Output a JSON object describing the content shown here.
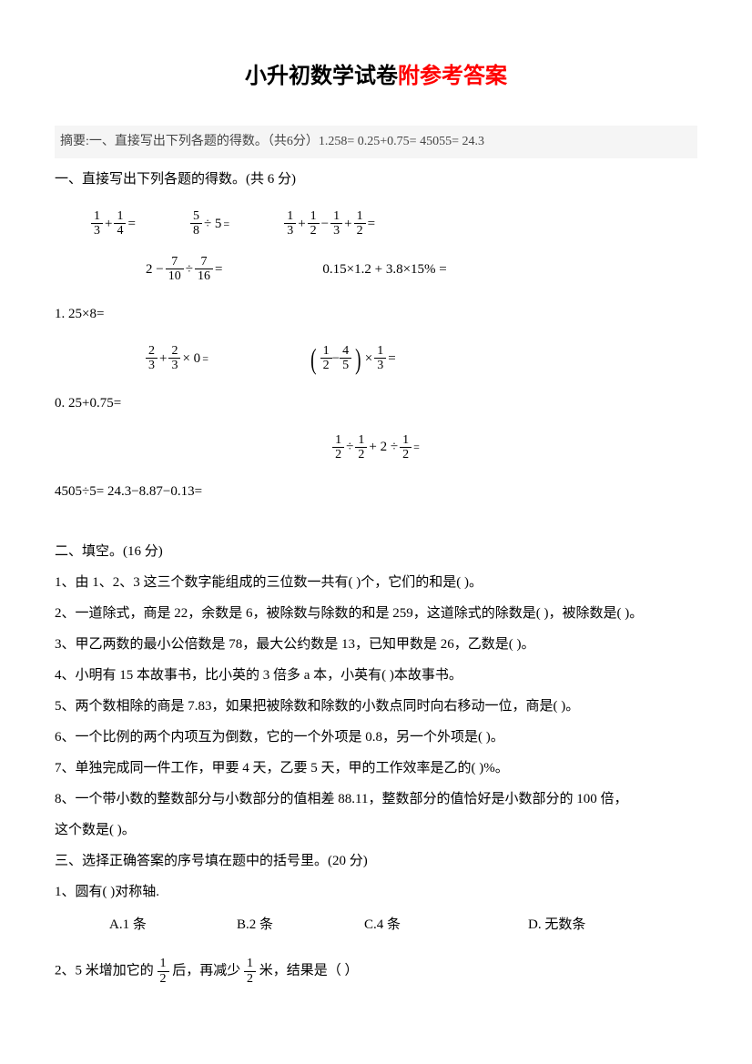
{
  "title_black": "小升初数学试卷",
  "title_red": "附参考答案",
  "abstract": "摘要:一、直接写出下列各题的得数。（共6分）1.258= 0.25+0.75= 45055= 24.3",
  "s1": {
    "heading": "一、直接写出下列各题的得数。(共 6 分)",
    "eq_row1": {
      "a": {
        "n1": "1",
        "d1": "3",
        "op": "+",
        "n2": "1",
        "d2": "4",
        "tail": " ="
      },
      "b": {
        "n": "5",
        "d": "8",
        "tail": " ÷ 5",
        "sub": "="
      },
      "c": {
        "n1": "1",
        "d1": "3",
        "n2": "1",
        "d2": "2",
        "n3": "1",
        "d3": "3",
        "n4": "1",
        "d4": "2",
        "ops": [
          "+",
          "−",
          "+"
        ],
        "tail": " ="
      }
    },
    "eq_row2": {
      "a": {
        "pre": "2 − ",
        "n1": "7",
        "d1": "10",
        "op": " ÷ ",
        "n2": "7",
        "d2": "16",
        "tail": " ="
      },
      "b": "0.15×1.2 + 3.8×15% ="
    },
    "line_a": "1. 25×8=",
    "eq_row3": {
      "a": {
        "n1": "2",
        "d1": "3",
        "op": " + ",
        "n2": "2",
        "d2": "3",
        "tail": " × 0",
        "sub": "="
      },
      "b": {
        "n1": "1",
        "d1": "2",
        "op": " − ",
        "n2": "4",
        "d2": "5",
        "post": " × ",
        "n3": "1",
        "d3": "3",
        "tail": " ="
      }
    },
    "line_b": "0. 25+0.75=",
    "eq_row4": {
      "a": {
        "n1": "1",
        "d1": "2",
        "op1": " ÷ ",
        "n2": "1",
        "d2": "2",
        "mid": " + 2 ÷ ",
        "n3": "1",
        "d3": "2",
        "sub": "="
      }
    },
    "line_c": "4505÷5=  24.3−8.87−0.13="
  },
  "s2": {
    "heading": "二、填空。(16 分)",
    "q1": "1、由 1、2、3 这三个数字能组成的三位数一共有( )个，它们的和是( )。",
    "q2": "2、一道除式，商是 22，余数是 6，被除数与除数的和是 259，这道除式的除数是( )，被除数是( )。",
    "q3": "3、甲乙两数的最小公倍数是 78，最大公约数是 13，已知甲数是 26，乙数是( )。",
    "q4": "4、小明有 15 本故事书，比小英的 3 倍多 a 本，小英有( )本故事书。",
    "q5": "5、两个数相除的商是 7.83，如果把被除数和除数的小数点同时向右移动一位，商是( )。",
    "q6": "6、一个比例的两个内项互为倒数，它的一个外项是 0.8，另一个外项是( )。",
    "q7": "7、单独完成同一件工作，甲要 4 天，乙要 5 天，甲的工作效率是乙的( )%。",
    "q8a": "8、一个带小数的整数部分与小数部分的值相差 88.11，整数部分的值恰好是小数部分的 100 倍，",
    "q8b": "这个数是( )。"
  },
  "s3": {
    "heading": "三、选择正确答案的序号填在题中的括号里。(20 分)",
    "q1": "1、圆有( )对称轴.",
    "q1_opts": {
      "A": "A.1 条",
      "B": "B.2 条",
      "C": "C.4 条",
      "D": "D. 无数条"
    },
    "q2_pre": "2、5 米增加它的",
    "q2_f1": {
      "n": "1",
      "d": "2"
    },
    "q2_mid": "后，再减少",
    "q2_f2": {
      "n": "1",
      "d": "2"
    },
    "q2_post": "米，结果是（ ）"
  }
}
